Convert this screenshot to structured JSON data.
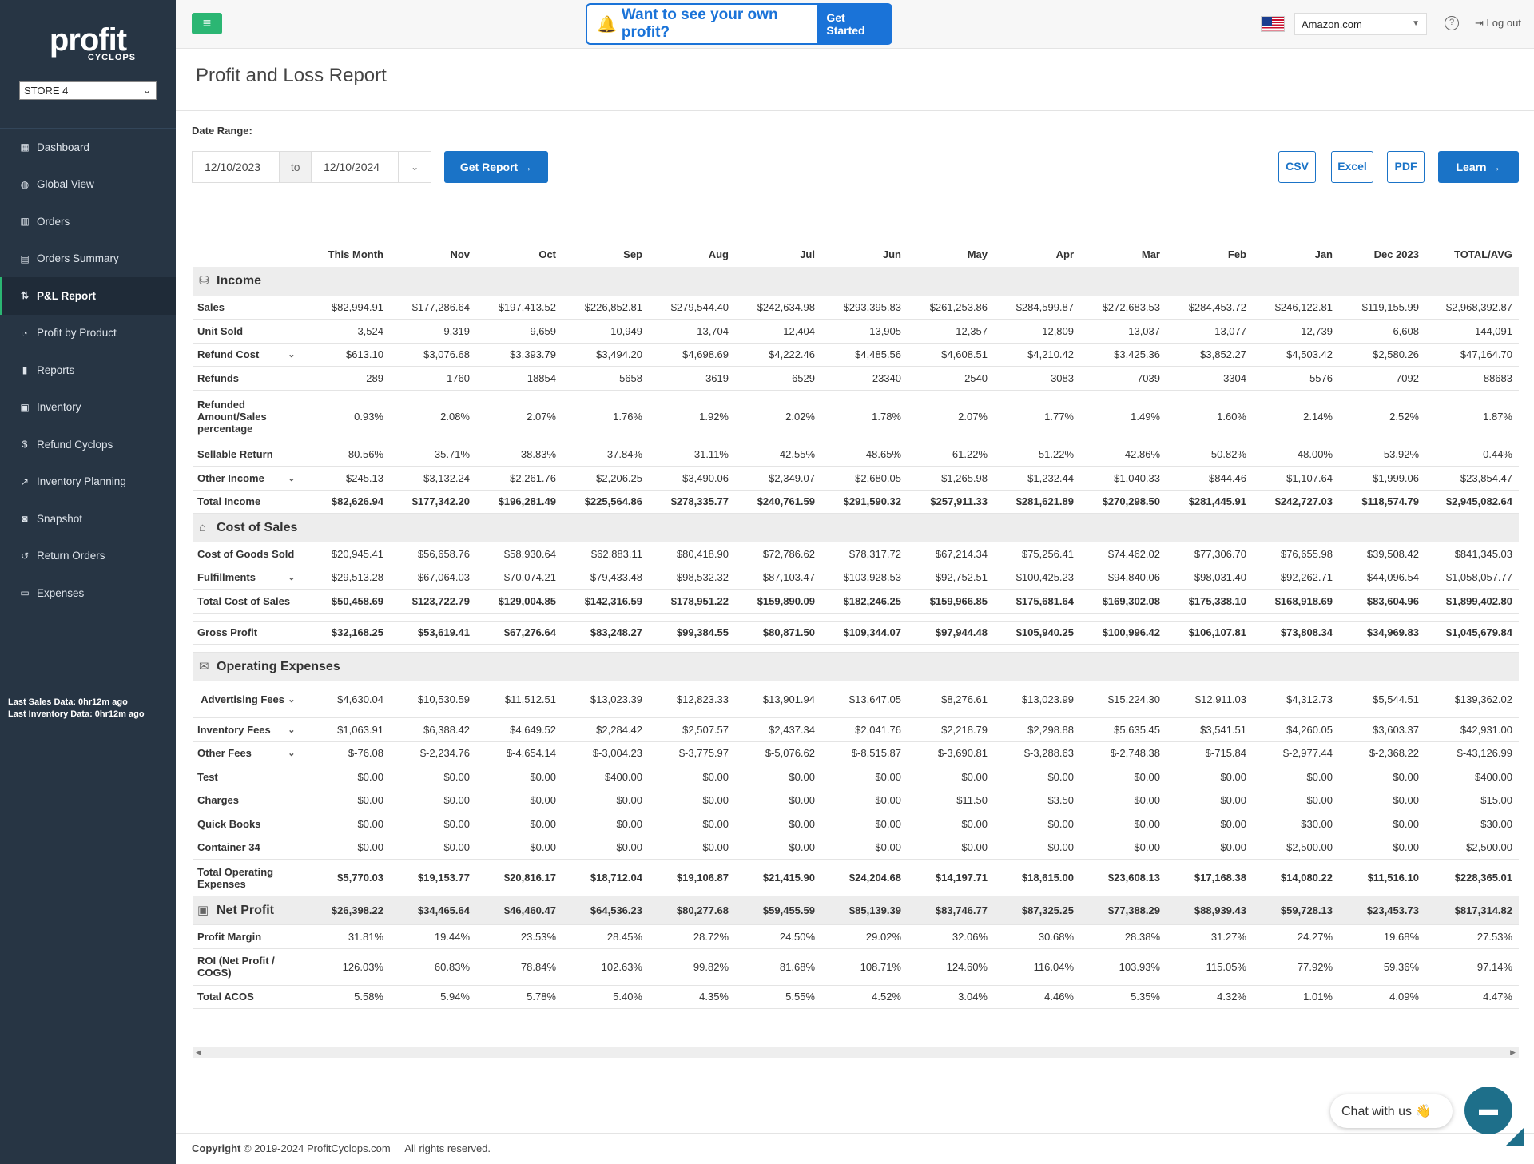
{
  "sidebar": {
    "logo_main": "profit",
    "logo_sub": "CYCLOPS",
    "store_select": "STORE 4",
    "nav": [
      {
        "label": "Dashboard",
        "icon": "grid-icon"
      },
      {
        "label": "Global View",
        "icon": "globe-icon"
      },
      {
        "label": "Orders",
        "icon": "bar-chart-icon"
      },
      {
        "label": "Orders Summary",
        "icon": "table-icon"
      },
      {
        "label": "P&L Report",
        "icon": "sort-icon",
        "active": true
      },
      {
        "label": "Profit by Product",
        "icon": "pie-chart-icon"
      },
      {
        "label": "Reports",
        "icon": "book-icon"
      },
      {
        "label": "Inventory",
        "icon": "briefcase-icon"
      },
      {
        "label": "Refund Cyclops",
        "icon": "dollar-icon"
      },
      {
        "label": "Inventory Planning",
        "icon": "line-chart-icon"
      },
      {
        "label": "Snapshot",
        "icon": "camera-icon"
      },
      {
        "label": "Return Orders",
        "icon": "undo-icon"
      },
      {
        "label": "Expenses",
        "icon": "money-icon"
      }
    ],
    "last_sales": "Last Sales Data: 0hr12m ago",
    "last_inventory": "Last Inventory Data: 0hr12m ago"
  },
  "topbar": {
    "promo_text": "Want to see your own profit?",
    "promo_button": "Get Started",
    "marketplace": "Amazon.com",
    "help": "?",
    "logout": "Log out"
  },
  "page": {
    "title": "Profit and Loss Report",
    "date_range_label": "Date Range:",
    "date_from": "12/10/2023",
    "date_to_label": "to",
    "date_to": "12/10/2024",
    "get_report": "Get Report",
    "csv": "CSV",
    "excel": "Excel",
    "pdf": "PDF",
    "learn": "Learn"
  },
  "table": {
    "columns": [
      "This Month",
      "Nov",
      "Oct",
      "Sep",
      "Aug",
      "Jul",
      "Jun",
      "May",
      "Apr",
      "Mar",
      "Feb",
      "Jan",
      "Dec 2023",
      "TOTAL/AVG"
    ],
    "rows": [
      {
        "type": "section",
        "label": "Income",
        "icon": "database-icon"
      },
      {
        "label": "Sales",
        "values": [
          "$82,994.91",
          "$177,286.64",
          "$197,413.52",
          "$226,852.81",
          "$279,544.40",
          "$242,634.98",
          "$293,395.83",
          "$261,253.86",
          "$284,599.87",
          "$272,683.53",
          "$284,453.72",
          "$246,122.81",
          "$119,155.99",
          "$2,968,392.87"
        ]
      },
      {
        "label": "Unit Sold",
        "values": [
          "3,524",
          "9,319",
          "9,659",
          "10,949",
          "13,704",
          "12,404",
          "13,905",
          "12,357",
          "12,809",
          "13,037",
          "13,077",
          "12,739",
          "6,608",
          "144,091"
        ]
      },
      {
        "label": "Refund Cost",
        "caret": true,
        "values": [
          "$613.10",
          "$3,076.68",
          "$3,393.79",
          "$3,494.20",
          "$4,698.69",
          "$4,222.46",
          "$4,485.56",
          "$4,608.51",
          "$4,210.42",
          "$3,425.36",
          "$3,852.27",
          "$4,503.42",
          "$2,580.26",
          "$47,164.70"
        ]
      },
      {
        "label": "Refunds",
        "values": [
          "289",
          "1760",
          "18854",
          "5658",
          "3619",
          "6529",
          "23340",
          "2540",
          "3083",
          "7039",
          "3304",
          "5576",
          "7092",
          "88683"
        ]
      },
      {
        "label": "Refunded Amount/Sales percentage",
        "tall": true,
        "values": [
          "0.93%",
          "2.08%",
          "2.07%",
          "1.76%",
          "1.92%",
          "2.02%",
          "1.78%",
          "2.07%",
          "1.77%",
          "1.49%",
          "1.60%",
          "2.14%",
          "2.52%",
          "1.87%"
        ]
      },
      {
        "label": "Sellable Return",
        "values": [
          "80.56%",
          "35.71%",
          "38.83%",
          "37.84%",
          "31.11%",
          "42.55%",
          "48.65%",
          "61.22%",
          "51.22%",
          "42.86%",
          "50.82%",
          "48.00%",
          "53.92%",
          "0.44%"
        ]
      },
      {
        "label": "Other Income",
        "caret": true,
        "values": [
          "$245.13",
          "$3,132.24",
          "$2,261.76",
          "$2,206.25",
          "$3,490.06",
          "$2,349.07",
          "$2,680.05",
          "$1,265.98",
          "$1,232.44",
          "$1,040.33",
          "$844.46",
          "$1,107.64",
          "$1,999.06",
          "$23,854.47"
        ]
      },
      {
        "label": "Total Income",
        "total": true,
        "values": [
          "$82,626.94",
          "$177,342.20",
          "$196,281.49",
          "$225,564.86",
          "$278,335.77",
          "$240,761.59",
          "$291,590.32",
          "$257,911.33",
          "$281,621.89",
          "$270,298.50",
          "$281,445.91",
          "$242,727.03",
          "$118,574.79",
          "$2,945,082.64"
        ]
      },
      {
        "type": "section",
        "label": "Cost of Sales",
        "icon": "gift-icon"
      },
      {
        "label": "Cost of Goods Sold",
        "values": [
          "$20,945.41",
          "$56,658.76",
          "$58,930.64",
          "$62,883.11",
          "$80,418.90",
          "$72,786.62",
          "$78,317.72",
          "$67,214.34",
          "$75,256.41",
          "$74,462.02",
          "$77,306.70",
          "$76,655.98",
          "$39,508.42",
          "$841,345.03"
        ]
      },
      {
        "label": "Fulfillments",
        "caret": true,
        "values": [
          "$29,513.28",
          "$67,064.03",
          "$70,074.21",
          "$79,433.48",
          "$98,532.32",
          "$87,103.47",
          "$103,928.53",
          "$92,752.51",
          "$100,425.23",
          "$94,840.06",
          "$98,031.40",
          "$92,262.71",
          "$44,096.54",
          "$1,058,057.77"
        ]
      },
      {
        "label": "Total Cost of Sales",
        "total": true,
        "values": [
          "$50,458.69",
          "$123,722.79",
          "$129,004.85",
          "$142,316.59",
          "$178,951.22",
          "$159,890.09",
          "$182,246.25",
          "$159,966.85",
          "$175,681.64",
          "$169,302.08",
          "$175,338.10",
          "$168,918.69",
          "$83,604.96",
          "$1,899,402.80"
        ]
      },
      {
        "type": "gap"
      },
      {
        "label": "Gross Profit",
        "total": true,
        "values": [
          "$32,168.25",
          "$53,619.41",
          "$67,276.64",
          "$83,248.27",
          "$99,384.55",
          "$80,871.50",
          "$109,344.07",
          "$97,944.48",
          "$105,940.25",
          "$100,996.42",
          "$106,107.81",
          "$73,808.34",
          "$34,969.83",
          "$1,045,679.84"
        ]
      },
      {
        "type": "gap"
      },
      {
        "type": "section",
        "label": "Operating Expenses",
        "icon": "envelope-icon"
      },
      {
        "label": "Advertising Fees",
        "caret": true,
        "tall": true,
        "center": true,
        "values": [
          "$4,630.04",
          "$10,530.59",
          "$11,512.51",
          "$13,023.39",
          "$12,823.33",
          "$13,901.94",
          "$13,647.05",
          "$8,276.61",
          "$13,023.99",
          "$15,224.30",
          "$12,911.03",
          "$4,312.73",
          "$5,544.51",
          "$139,362.02"
        ]
      },
      {
        "label": "Inventory Fees",
        "caret": true,
        "values": [
          "$1,063.91",
          "$6,388.42",
          "$4,649.52",
          "$2,284.42",
          "$2,507.57",
          "$2,437.34",
          "$2,041.76",
          "$2,218.79",
          "$2,298.88",
          "$5,635.45",
          "$3,541.51",
          "$4,260.05",
          "$3,603.37",
          "$42,931.00"
        ]
      },
      {
        "label": "Other Fees",
        "caret": true,
        "values": [
          "$-76.08",
          "$-2,234.76",
          "$-4,654.14",
          "$-3,004.23",
          "$-3,775.97",
          "$-5,076.62",
          "$-8,515.87",
          "$-3,690.81",
          "$-3,288.63",
          "$-2,748.38",
          "$-715.84",
          "$-2,977.44",
          "$-2,368.22",
          "$-43,126.99"
        ]
      },
      {
        "label": "Test",
        "values": [
          "$0.00",
          "$0.00",
          "$0.00",
          "$400.00",
          "$0.00",
          "$0.00",
          "$0.00",
          "$0.00",
          "$0.00",
          "$0.00",
          "$0.00",
          "$0.00",
          "$0.00",
          "$400.00"
        ]
      },
      {
        "label": "Charges",
        "values": [
          "$0.00",
          "$0.00",
          "$0.00",
          "$0.00",
          "$0.00",
          "$0.00",
          "$0.00",
          "$11.50",
          "$3.50",
          "$0.00",
          "$0.00",
          "$0.00",
          "$0.00",
          "$15.00"
        ]
      },
      {
        "label": "Quick Books",
        "values": [
          "$0.00",
          "$0.00",
          "$0.00",
          "$0.00",
          "$0.00",
          "$0.00",
          "$0.00",
          "$0.00",
          "$0.00",
          "$0.00",
          "$0.00",
          "$30.00",
          "$0.00",
          "$30.00"
        ]
      },
      {
        "label": "Container 34",
        "values": [
          "$0.00",
          "$0.00",
          "$0.00",
          "$0.00",
          "$0.00",
          "$0.00",
          "$0.00",
          "$0.00",
          "$0.00",
          "$0.00",
          "$0.00",
          "$2,500.00",
          "$0.00",
          "$2,500.00"
        ]
      },
      {
        "label": "Total Operating Expenses",
        "total": true,
        "tall": true,
        "values": [
          "$5,770.03",
          "$19,153.77",
          "$20,816.17",
          "$18,712.04",
          "$19,106.87",
          "$21,415.90",
          "$24,204.68",
          "$14,197.71",
          "$18,615.00",
          "$23,608.13",
          "$17,168.38",
          "$14,080.22",
          "$11,516.10",
          "$228,365.01"
        ]
      },
      {
        "type": "net",
        "label": "Net Profit",
        "icon": "cash-icon",
        "values": [
          "$26,398.22",
          "$34,465.64",
          "$46,460.47",
          "$64,536.23",
          "$80,277.68",
          "$59,455.59",
          "$85,139.39",
          "$83,746.77",
          "$87,325.25",
          "$77,388.29",
          "$88,939.43",
          "$59,728.13",
          "$23,453.73",
          "$817,314.82"
        ]
      },
      {
        "label": "Profit Margin",
        "values": [
          "31.81%",
          "19.44%",
          "23.53%",
          "28.45%",
          "28.72%",
          "24.50%",
          "29.02%",
          "32.06%",
          "30.68%",
          "28.38%",
          "31.27%",
          "24.27%",
          "19.68%",
          "27.53%"
        ]
      },
      {
        "label": "ROI (Net Profit / COGS)",
        "tall": true,
        "values": [
          "126.03%",
          "60.83%",
          "78.84%",
          "102.63%",
          "99.82%",
          "81.68%",
          "108.71%",
          "124.60%",
          "116.04%",
          "103.93%",
          "115.05%",
          "77.92%",
          "59.36%",
          "97.14%"
        ]
      },
      {
        "label": "Total ACOS",
        "values": [
          "5.58%",
          "5.94%",
          "5.78%",
          "5.40%",
          "4.35%",
          "5.55%",
          "4.52%",
          "3.04%",
          "4.46%",
          "5.35%",
          "4.32%",
          "1.01%",
          "4.09%",
          "4.47%"
        ]
      }
    ]
  },
  "footer": {
    "copyright_bold": "Copyright",
    "copyright_text": "© 2019-2024 ProfitCyclops.com",
    "rights": "All rights reserved."
  },
  "chat": {
    "label": "Chat with us"
  }
}
